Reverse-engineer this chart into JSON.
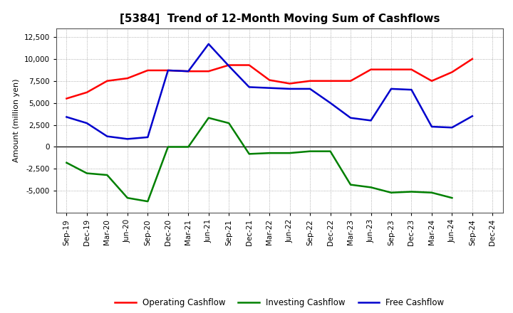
{
  "title": "[5384]  Trend of 12-Month Moving Sum of Cashflows",
  "ylabel": "Amount (million yen)",
  "x_labels": [
    "Sep-19",
    "Dec-19",
    "Mar-20",
    "Jun-20",
    "Sep-20",
    "Dec-20",
    "Mar-21",
    "Jun-21",
    "Sep-21",
    "Dec-21",
    "Mar-22",
    "Jun-22",
    "Sep-22",
    "Dec-22",
    "Mar-23",
    "Jun-23",
    "Sep-23",
    "Dec-23",
    "Mar-24",
    "Jun-24",
    "Sep-24",
    "Dec-24"
  ],
  "operating": [
    5500,
    6200,
    7500,
    7800,
    8700,
    8700,
    8600,
    8600,
    9300,
    9300,
    7600,
    7200,
    7500,
    7500,
    7500,
    8800,
    8800,
    8800,
    7500,
    8500,
    10000,
    null
  ],
  "investing": [
    -1800,
    -3000,
    -3200,
    -5800,
    -6200,
    0,
    0,
    3300,
    2700,
    -800,
    -700,
    -700,
    -500,
    -500,
    -4300,
    -4600,
    -5200,
    -5100,
    -5200,
    -5800,
    null,
    null
  ],
  "free": [
    3400,
    2700,
    1200,
    900,
    1100,
    8700,
    8600,
    11700,
    9200,
    6800,
    6700,
    6600,
    6600,
    5000,
    3300,
    3000,
    6600,
    6500,
    2300,
    2200,
    3500,
    null
  ],
  "operating_color": "#ff0000",
  "investing_color": "#008000",
  "free_color": "#0000cd",
  "ylim": [
    -7500,
    13500
  ],
  "yticks": [
    -5000,
    -2500,
    0,
    2500,
    5000,
    7500,
    10000,
    12500
  ],
  "bg_color": "#ffffff",
  "grid_color": "#999999",
  "linewidth": 1.8,
  "title_fontsize": 11,
  "axis_fontsize": 8,
  "tick_fontsize": 7.5,
  "legend_fontsize": 8.5
}
